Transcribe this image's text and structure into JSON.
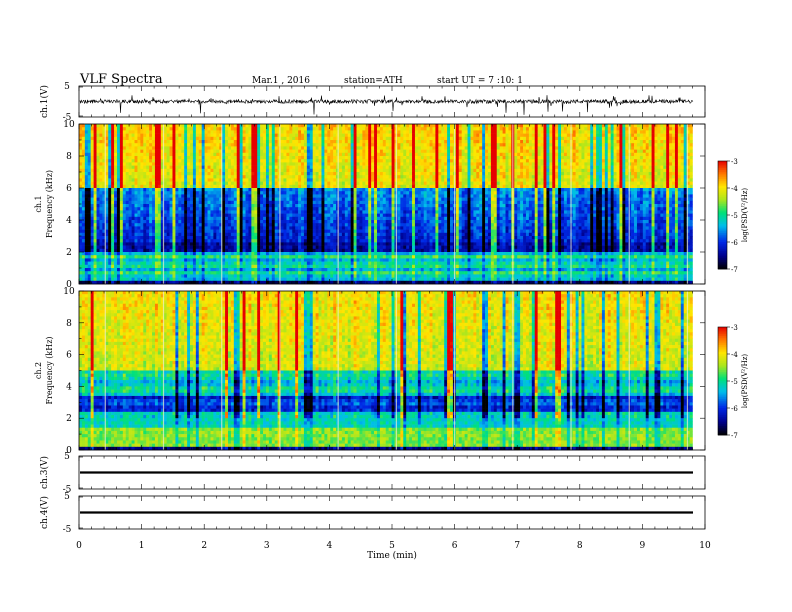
{
  "header": {
    "title": "VLF Spectra",
    "date": "Mar.1 , 2016",
    "station": "station=ATH",
    "start": "start UT = 7 :10: 1"
  },
  "axes": {
    "xlabel": "Time (min)",
    "xticks": [
      "0",
      "1",
      "2",
      "3",
      "4",
      "5",
      "6",
      "7",
      "8",
      "9",
      "10"
    ],
    "ch1_wave_label": "ch.1(V)",
    "ch3_wave_label": "ch.3(V)",
    "ch4_wave_label": "ch.4(V)",
    "wave_ticks": [
      "5",
      "-5"
    ],
    "spec1_label_top": "ch.1",
    "spec1_label": "Frequency (kHz)",
    "spec2_label_top": "ch.2",
    "spec2_label": "Frequency (kHz)",
    "freq_ticks": [
      "0",
      "2",
      "4",
      "6",
      "8",
      "10"
    ],
    "colorbar_label": "log(PSD(V²/Hz)",
    "colorbar_ticks": [
      "-3",
      "-4",
      "-5",
      "-6",
      "-7"
    ]
  },
  "chart_data": [
    {
      "type": "line",
      "panel": "ch.1 waveform",
      "ylabel": "ch.1(V)",
      "xlabel": "Time (min)",
      "xlim": [
        0,
        10
      ],
      "ylim": [
        -5,
        5
      ],
      "series": [
        {
          "values_summary": {
            "mean": 0,
            "typical_range": [
              -1,
              1
            ],
            "spike_range": [
              -4,
              2
            ]
          }
        }
      ]
    },
    {
      "type": "heatmap",
      "panel": "ch.1 spectrogram",
      "ylabel": "Frequency (kHz)",
      "xlim": [
        0,
        9.8
      ],
      "ylim": [
        0,
        10
      ],
      "color_scale": {
        "label": "log(PSD(V²/Hz)",
        "min": -7,
        "max": -3
      }
    },
    {
      "type": "heatmap",
      "panel": "ch.2 spectrogram",
      "ylabel": "Frequency (kHz)",
      "xlim": [
        0,
        9.8
      ],
      "ylim": [
        0,
        10
      ],
      "color_scale": {
        "label": "log(PSD(V²/Hz)",
        "min": -7,
        "max": -3
      }
    },
    {
      "type": "line",
      "panel": "ch.3 waveform",
      "ylabel": "ch.3(V)",
      "xlim": [
        0,
        10
      ],
      "ylim": [
        -5,
        5
      ],
      "series": [
        {
          "values_summary": {
            "constant": 0
          }
        }
      ]
    },
    {
      "type": "line",
      "panel": "ch.4 waveform",
      "ylabel": "ch.4(V)",
      "xlim": [
        0,
        10
      ],
      "ylim": [
        -5,
        5
      ],
      "series": [
        {
          "values_summary": {
            "constant": 0
          }
        }
      ]
    }
  ]
}
